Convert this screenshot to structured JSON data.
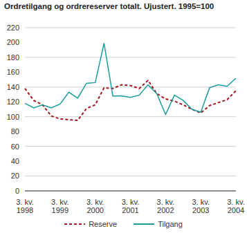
{
  "chart_data": {
    "type": "line",
    "title": "Ordretilgang og ordrereserver totalt. Ujustert. 1995=100",
    "categories": [
      "3. kv. 1998",
      null,
      null,
      null,
      "3. kv. 1999",
      null,
      null,
      null,
      "3. kv. 2000",
      null,
      null,
      null,
      "3. kv. 2001",
      null,
      null,
      null,
      "3. kv. 2002",
      null,
      null,
      null,
      "3. kv. 2003",
      null,
      null,
      null,
      "3. kv. 2004"
    ],
    "series": [
      {
        "name": "Reserve",
        "color": "#a3141e",
        "line_style": "dashed",
        "marker": "none",
        "values": [
          138,
          122,
          116,
          101,
          97,
          96,
          95,
          111,
          116,
          139,
          138,
          143,
          142,
          138,
          149,
          131,
          124,
          121,
          116,
          110,
          105,
          115,
          119,
          123,
          135
        ]
      },
      {
        "name": "Tilgang",
        "color": "#1a9c9c",
        "line_style": "solid",
        "marker": "none",
        "values": [
          118,
          112,
          116,
          112,
          117,
          133,
          125,
          145,
          146,
          199,
          128,
          128,
          126,
          129,
          143,
          131,
          103,
          129,
          122,
          110,
          106,
          139,
          143,
          141,
          152
        ]
      }
    ],
    "ylim": [
      0,
      220
    ],
    "yticks": [
      0,
      20,
      40,
      60,
      80,
      100,
      120,
      140,
      160,
      180,
      200,
      220
    ],
    "grid": true,
    "legend": "bottom"
  }
}
